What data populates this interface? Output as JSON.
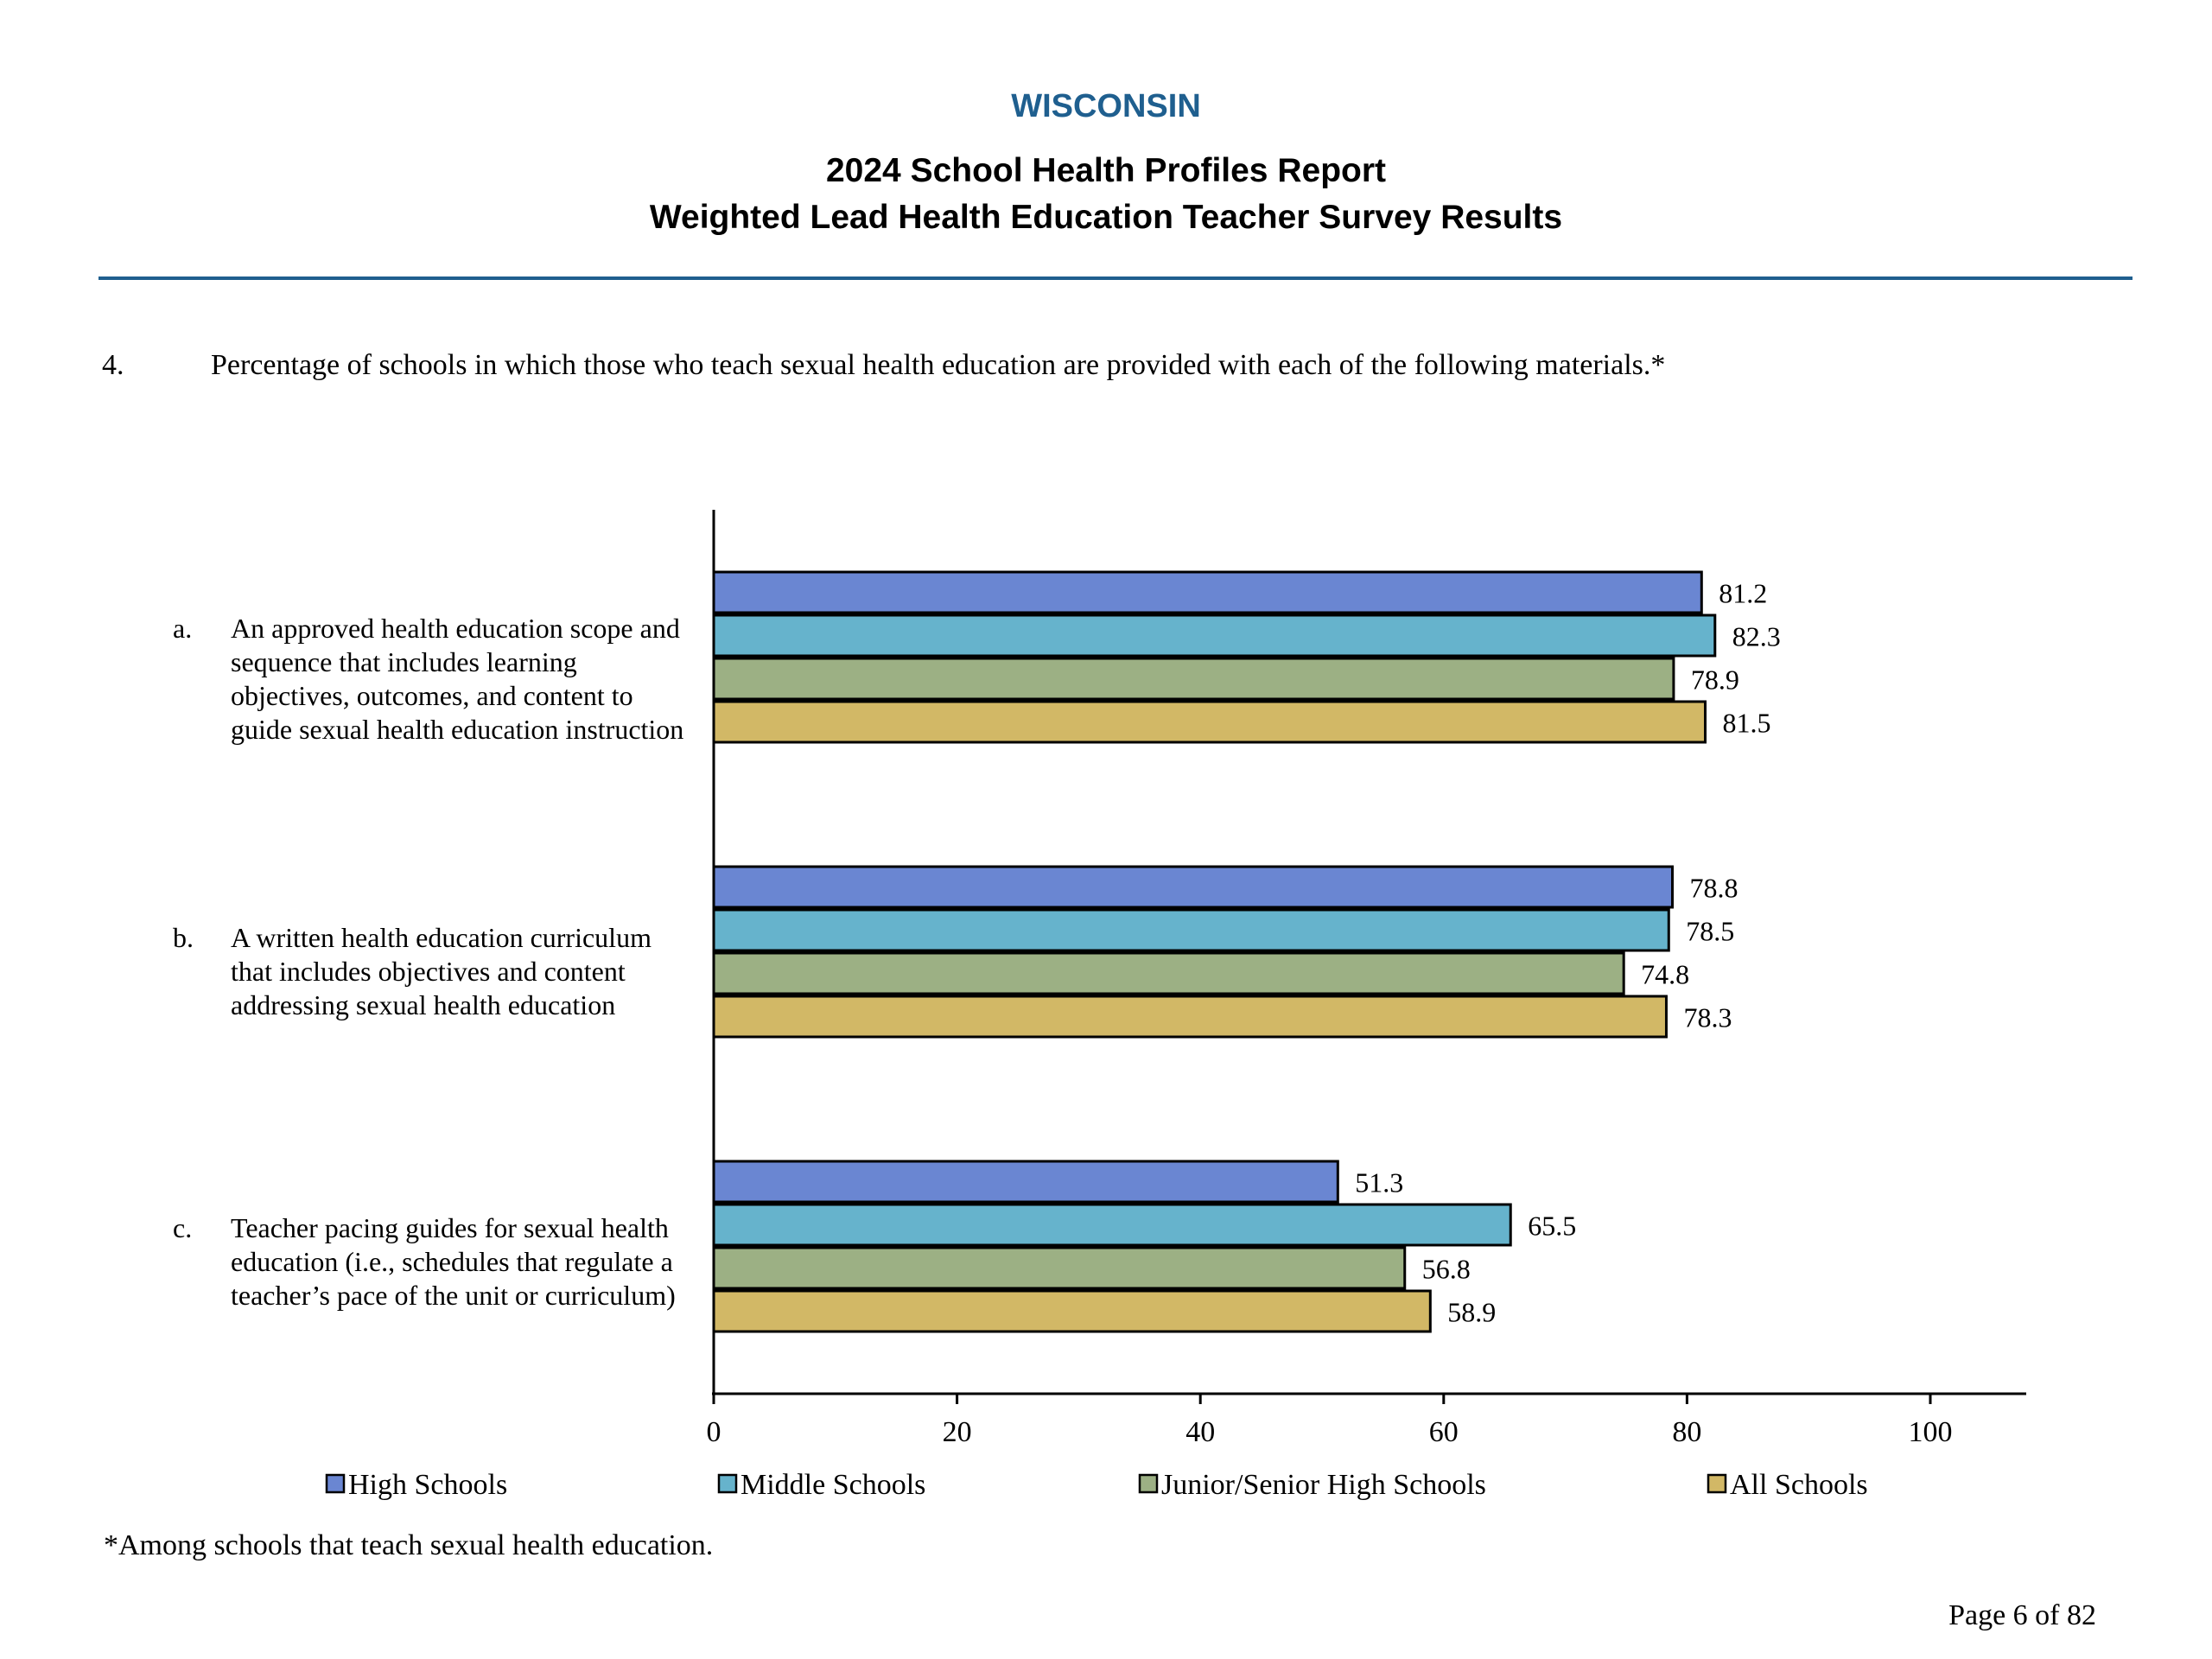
{
  "header": {
    "state": "WISCONSIN",
    "title_line1": "2024 School Health Profiles Report",
    "title_line2": "Weighted Lead Health Education Teacher Survey Results"
  },
  "question": {
    "number": "4.",
    "text": "Percentage of schools in which those who teach sexual health education are provided with each of the following materials.*"
  },
  "chart_data": {
    "type": "bar",
    "orientation": "horizontal",
    "categories": [
      {
        "letter": "a.",
        "lines": [
          "An approved health education scope and",
          "sequence that includes learning",
          "objectives, outcomes, and content to",
          "guide sexual health education instruction"
        ]
      },
      {
        "letter": "b.",
        "lines": [
          "A written health education curriculum",
          "that includes objectives and content",
          "addressing sexual health education"
        ]
      },
      {
        "letter": "c.",
        "lines": [
          "Teacher pacing guides for sexual health",
          "education (i.e., schedules that regulate a",
          "teacher’s pace of the unit or curriculum)"
        ]
      }
    ],
    "series": [
      {
        "name": "High Schools",
        "color": "#6a86d2",
        "values": [
          81.2,
          78.8,
          51.3
        ]
      },
      {
        "name": "Middle Schools",
        "color": "#66b3cc",
        "values": [
          82.3,
          78.5,
          65.5
        ]
      },
      {
        "name": "Junior/Senior High Schools",
        "color": "#9cb084",
        "values": [
          78.9,
          74.8,
          56.8
        ]
      },
      {
        "name": "All Schools",
        "color": "#d2b866",
        "values": [
          81.5,
          78.3,
          58.9
        ]
      }
    ],
    "xlim": [
      0,
      100
    ],
    "xticks": [
      "0",
      "20",
      "40",
      "60",
      "80",
      "100"
    ],
    "grid": false,
    "legend_position": "bottom"
  },
  "footnote": "*Among schools that teach sexual health education.",
  "page": "Page 6 of 82"
}
